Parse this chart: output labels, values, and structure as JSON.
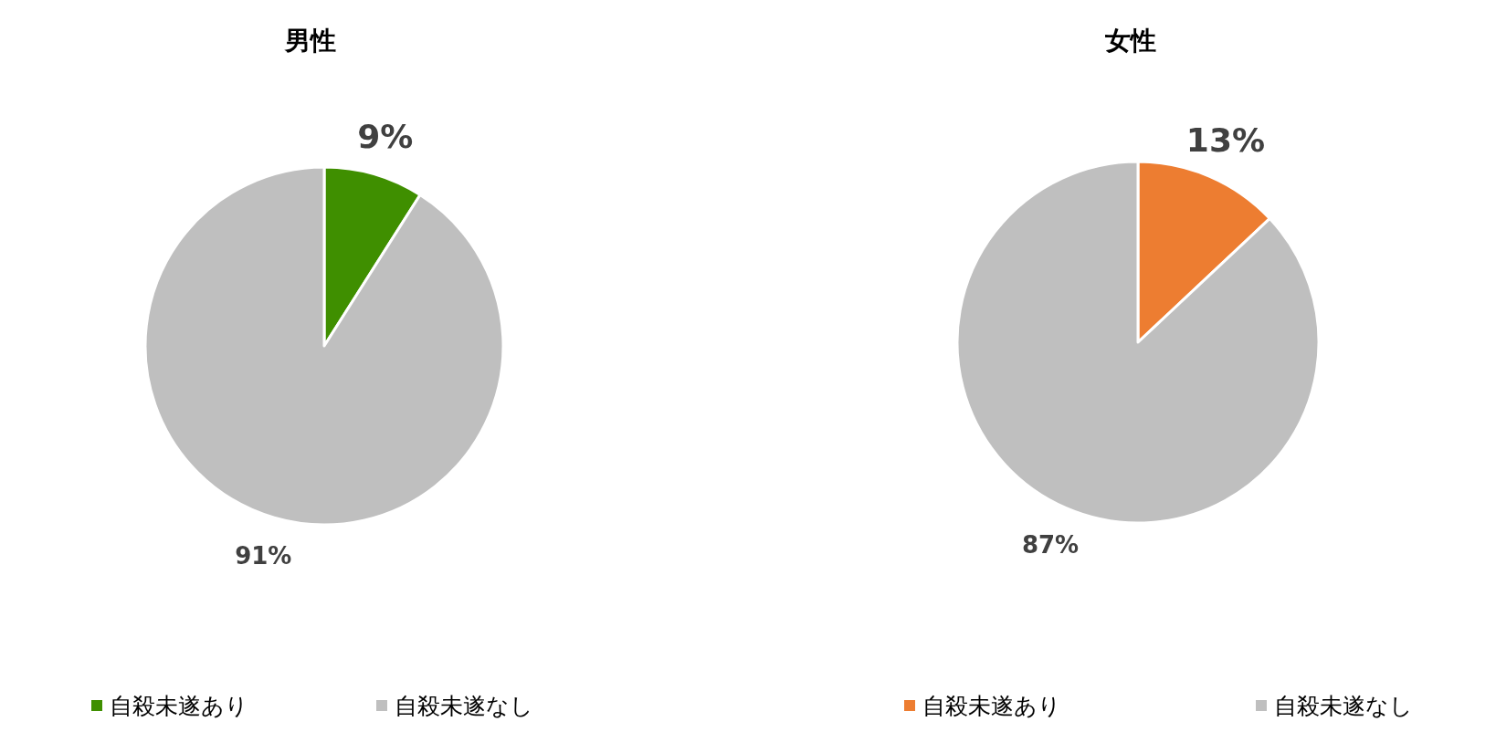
{
  "chart_data": [
    {
      "type": "pie",
      "title": "男性",
      "categories": [
        "自殺未遂あり",
        "自殺未遂なし"
      ],
      "values": [
        9,
        91
      ],
      "colors": [
        "#3f8f00",
        "#bfbfbf"
      ],
      "value_labels": [
        "9%",
        "91%"
      ],
      "legend": "bottom"
    },
    {
      "type": "pie",
      "title": "女性",
      "categories": [
        "自殺未遂あり",
        "自殺未遂なし"
      ],
      "values": [
        13,
        87
      ],
      "colors": [
        "#ed7d31",
        "#bfbfbf"
      ],
      "value_labels": [
        "13%",
        "87%"
      ],
      "legend": "bottom"
    }
  ]
}
